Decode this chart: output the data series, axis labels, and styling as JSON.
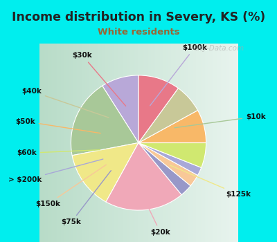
{
  "title": "Income distribution in Severy, KS (%)",
  "subtitle": "White residents",
  "title_color": "#222222",
  "subtitle_color": "#996633",
  "background_color": "#00eeee",
  "chart_bg_left": "#c8e8d8",
  "chart_bg_right": "#e8f4f0",
  "watermark": "City-Data.com",
  "labels": [
    "$100k",
    "$10k",
    "$125k",
    "$20k",
    "$75k",
    "$150k",
    "> $200k",
    "$60k",
    "$50k",
    "$40k",
    "$30k"
  ],
  "values": [
    9,
    19,
    14,
    19,
    3,
    3,
    2,
    6,
    8,
    7,
    10
  ],
  "colors": [
    "#b8a8d8",
    "#a8c898",
    "#f0e888",
    "#f0a8b8",
    "#9898c8",
    "#f8c898",
    "#a8a8d8",
    "#d0e870",
    "#f8b868",
    "#c8c898",
    "#e87888"
  ],
  "startangle": 90
}
